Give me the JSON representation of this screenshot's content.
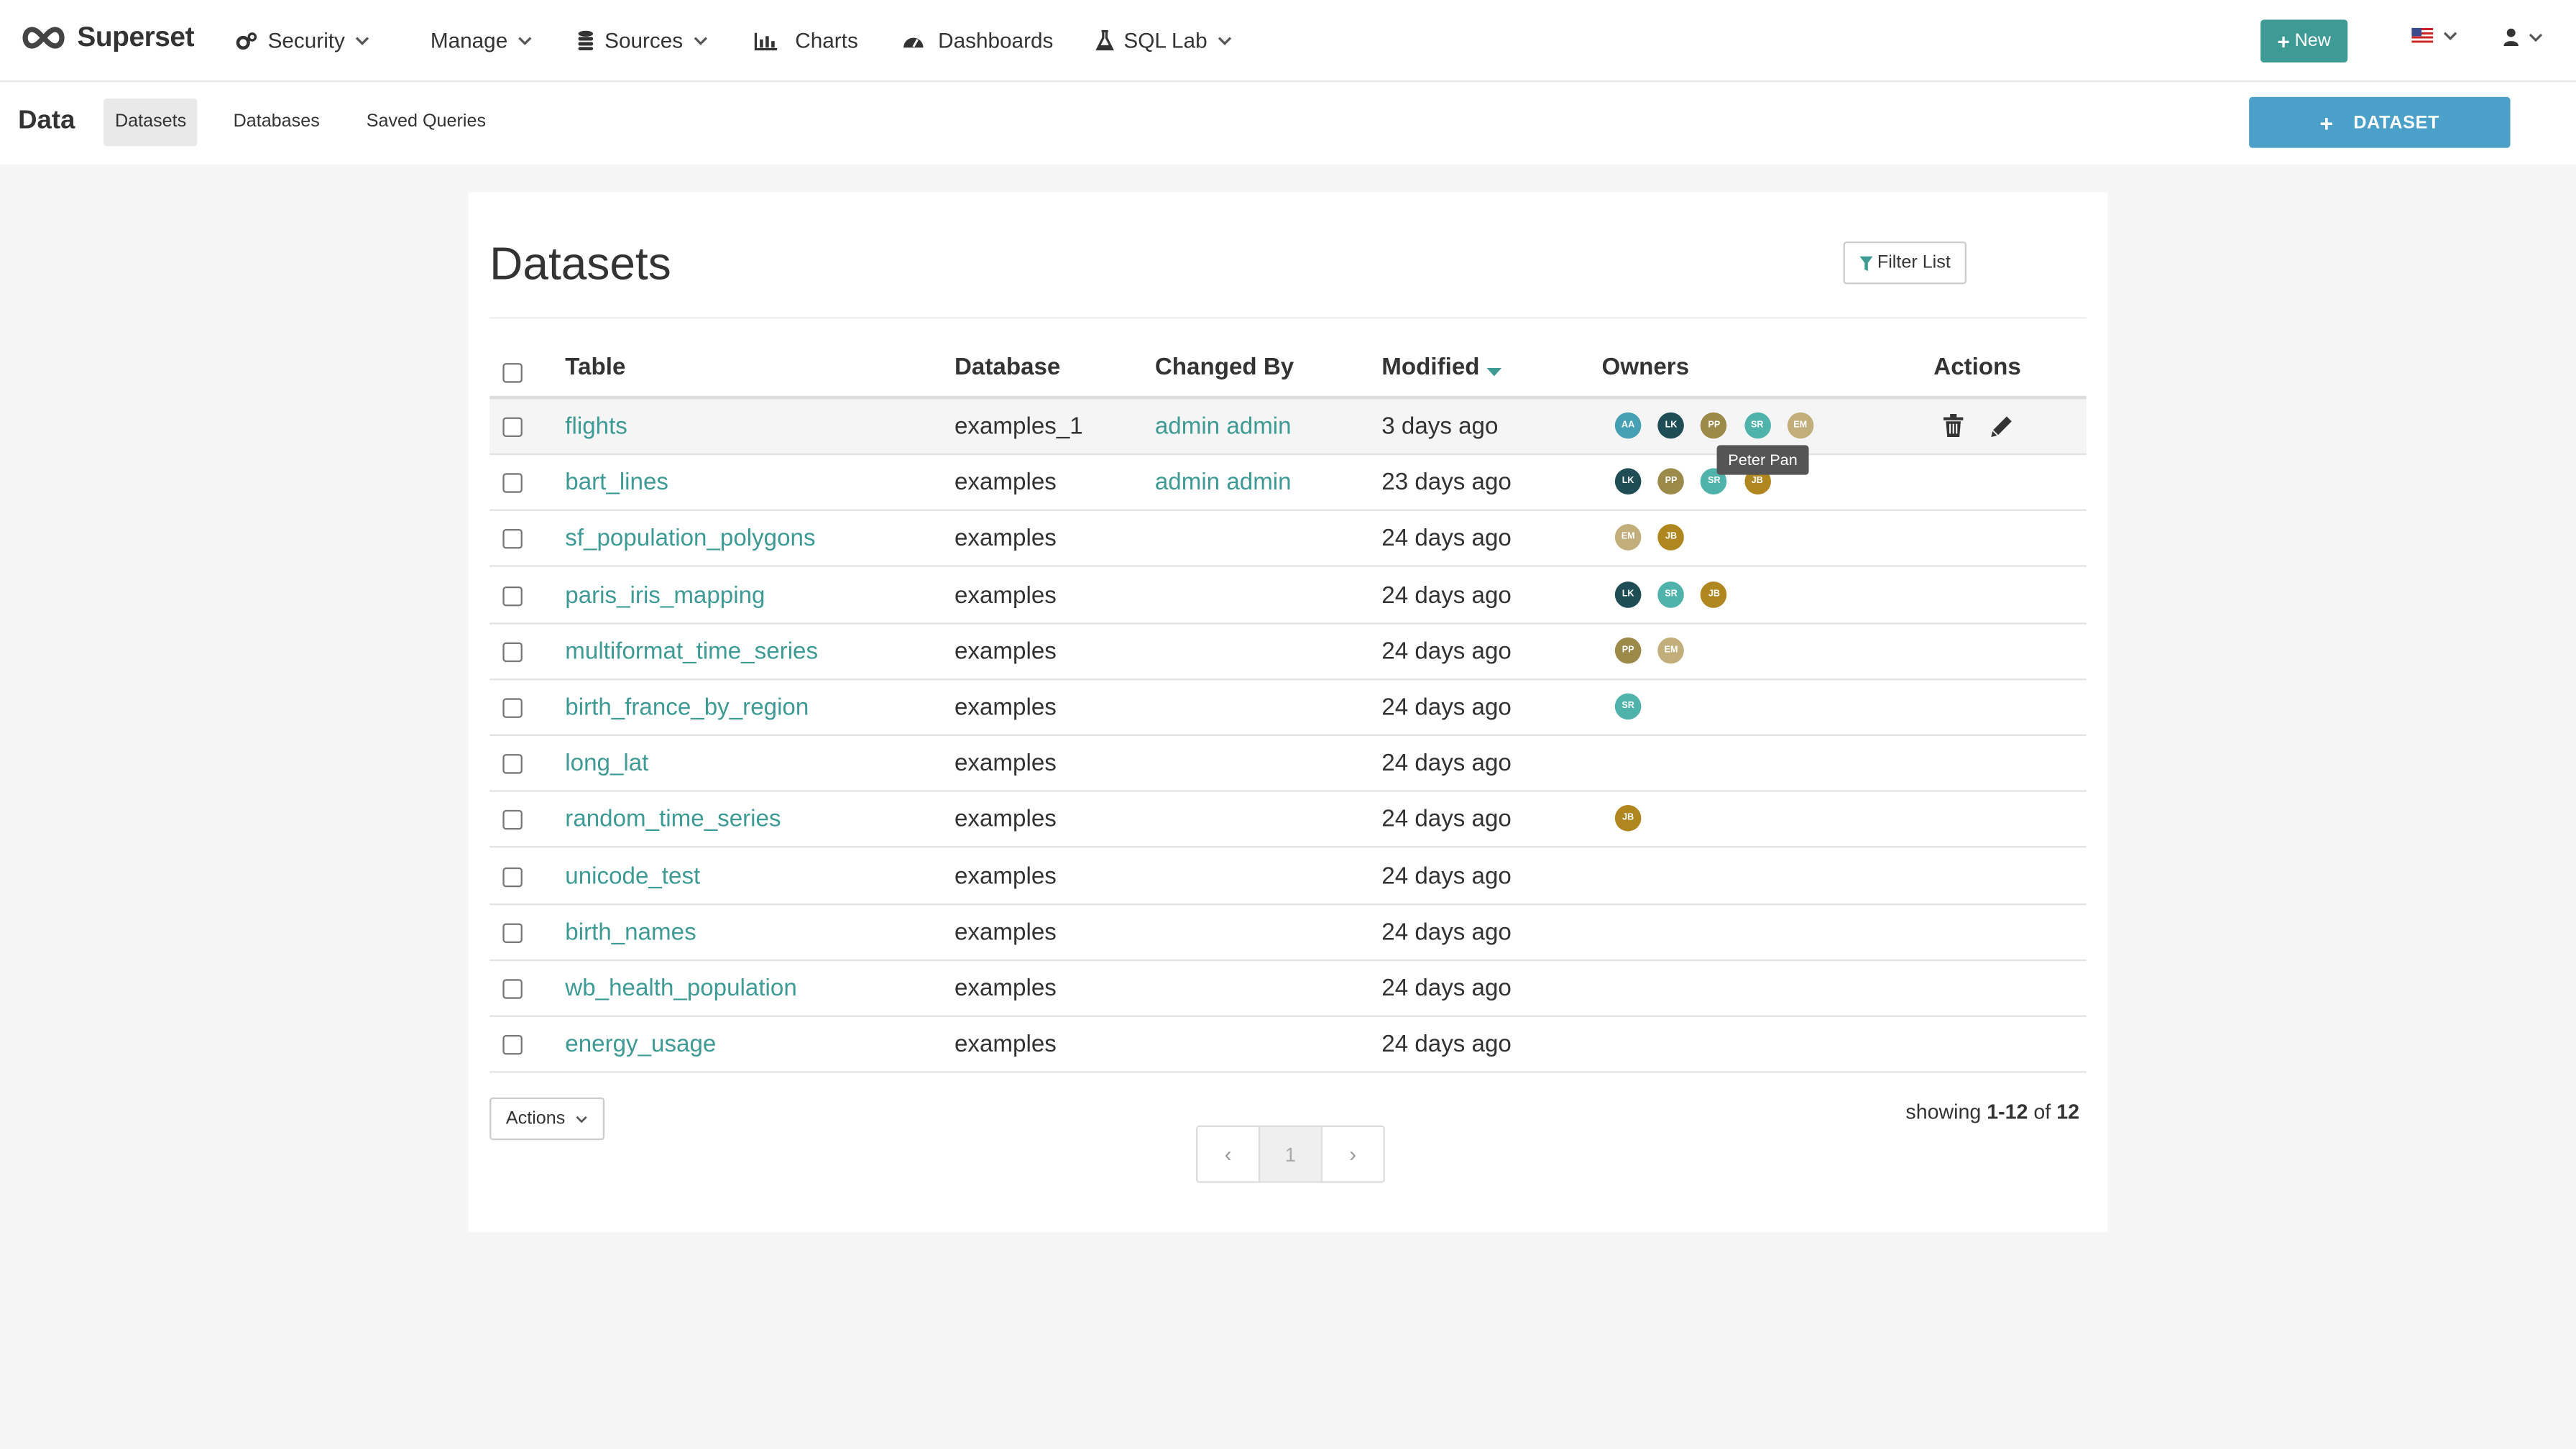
{
  "navbar": {
    "brand": "Superset",
    "items": [
      {
        "label": "Security",
        "icon": "cogs-icon",
        "dropdown": true
      },
      {
        "label": "Manage",
        "icon": "",
        "dropdown": true
      },
      {
        "label": "Sources",
        "icon": "database-icon",
        "dropdown": true
      },
      {
        "label": "Charts",
        "icon": "bar-chart-icon",
        "dropdown": false
      },
      {
        "label": "Dashboards",
        "icon": "dashboard-icon",
        "dropdown": false
      },
      {
        "label": "SQL Lab",
        "icon": "flask-icon",
        "dropdown": true
      }
    ],
    "new_label": "New"
  },
  "subheader": {
    "title": "Data",
    "tabs": [
      "Datasets",
      "Databases",
      "Saved Queries"
    ],
    "active_tab": "Datasets",
    "dataset_button": "DATASET"
  },
  "panel": {
    "title": "Datasets",
    "filter_label": "Filter List",
    "columns": {
      "table": "Table",
      "database": "Database",
      "changed_by": "Changed By",
      "modified": "Modified",
      "owners": "Owners",
      "actions": "Actions"
    },
    "rows": [
      {
        "table": "flights",
        "database": "examples_1",
        "changed_by": "admin admin",
        "modified": "3 days ago",
        "owners": [
          "AA",
          "LK",
          "PP",
          "SR",
          "EM"
        ]
      },
      {
        "table": "bart_lines",
        "database": "examples",
        "changed_by": "admin admin",
        "modified": "23 days ago",
        "owners": [
          "LK",
          "PP",
          "SR",
          "JB"
        ]
      },
      {
        "table": "sf_population_polygons",
        "database": "examples",
        "changed_by": "",
        "modified": "24 days ago",
        "owners": [
          "EM",
          "JB"
        ]
      },
      {
        "table": "paris_iris_mapping",
        "database": "examples",
        "changed_by": "",
        "modified": "24 days ago",
        "owners": [
          "LK",
          "SR",
          "JB"
        ]
      },
      {
        "table": "multiformat_time_series",
        "database": "examples",
        "changed_by": "",
        "modified": "24 days ago",
        "owners": [
          "PP",
          "EM"
        ]
      },
      {
        "table": "birth_france_by_region",
        "database": "examples",
        "changed_by": "",
        "modified": "24 days ago",
        "owners": [
          "SR"
        ]
      },
      {
        "table": "long_lat",
        "database": "examples",
        "changed_by": "",
        "modified": "24 days ago",
        "owners": []
      },
      {
        "table": "random_time_series",
        "database": "examples",
        "changed_by": "",
        "modified": "24 days ago",
        "owners": [
          "JB"
        ]
      },
      {
        "table": "unicode_test",
        "database": "examples",
        "changed_by": "",
        "modified": "24 days ago",
        "owners": []
      },
      {
        "table": "birth_names",
        "database": "examples",
        "changed_by": "",
        "modified": "24 days ago",
        "owners": []
      },
      {
        "table": "wb_health_population",
        "database": "examples",
        "changed_by": "",
        "modified": "24 days ago",
        "owners": []
      },
      {
        "table": "energy_usage",
        "database": "examples",
        "changed_by": "",
        "modified": "24 days ago",
        "owners": []
      }
    ],
    "tooltip": "Peter Pan",
    "bulk_actions_label": "Actions",
    "pagination": {
      "prev": "‹",
      "page": "1",
      "next": "›"
    },
    "showing": {
      "prefix": "showing",
      "range": "1-12",
      "of": "of",
      "total": "12"
    }
  },
  "colors": {
    "AA": "#45a0b4",
    "LK": "#1f4d55",
    "PP": "#9c8a4a",
    "SR": "#4fb3ac",
    "EM": "#c2ae7a",
    "JB": "#b0861f",
    "accent": "#3e9a94",
    "dataset_button": "#4ba0ca"
  }
}
